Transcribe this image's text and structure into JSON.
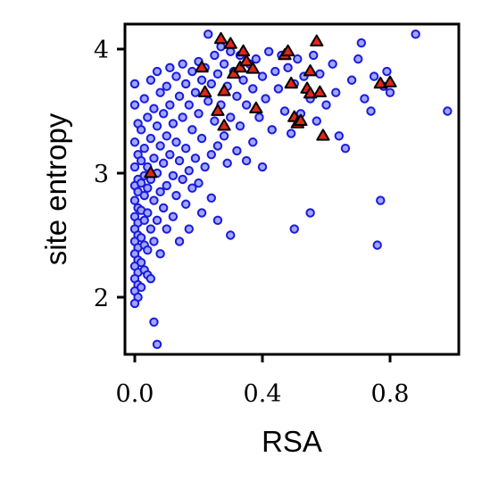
{
  "chart_data": {
    "type": "scatter",
    "xlabel": "RSA",
    "ylabel": "site entropy",
    "xlim": [
      -0.03,
      1.02
    ],
    "ylim": [
      1.52,
      4.22
    ],
    "x_ticks": [
      0.0,
      0.4,
      0.8
    ],
    "x_tick_labels": [
      "0.0",
      "0.4",
      "0.8"
    ],
    "y_ticks": [
      2,
      3,
      4
    ],
    "y_tick_labels": [
      "2",
      "3",
      "4"
    ],
    "grid": false,
    "legend": "none",
    "series": [
      {
        "marker": "circle",
        "color": "#1a1adc",
        "points": [
          [
            0.0,
            3.72
          ],
          [
            0.0,
            3.55
          ],
          [
            0.01,
            3.4
          ],
          [
            0.0,
            3.25
          ],
          [
            0.01,
            3.15
          ],
          [
            0.0,
            3.05
          ],
          [
            0.01,
            2.95
          ],
          [
            0.0,
            2.9
          ],
          [
            0.01,
            2.85
          ],
          [
            0.0,
            2.78
          ],
          [
            0.01,
            2.72
          ],
          [
            0.0,
            2.65
          ],
          [
            0.01,
            2.6
          ],
          [
            0.0,
            2.55
          ],
          [
            0.01,
            2.5
          ],
          [
            0.0,
            2.45
          ],
          [
            0.01,
            2.4
          ],
          [
            0.0,
            2.35
          ],
          [
            0.01,
            2.3
          ],
          [
            0.0,
            2.25
          ],
          [
            0.01,
            2.2
          ],
          [
            0.0,
            2.15
          ],
          [
            0.01,
            2.1
          ],
          [
            0.0,
            2.05
          ],
          [
            0.01,
            2.0
          ],
          [
            0.0,
            1.95
          ],
          [
            0.02,
            3.35
          ],
          [
            0.02,
            3.1
          ],
          [
            0.02,
            2.92
          ],
          [
            0.02,
            2.7
          ],
          [
            0.02,
            2.48
          ],
          [
            0.02,
            2.28
          ],
          [
            0.02,
            2.08
          ],
          [
            0.03,
            3.6
          ],
          [
            0.03,
            3.2
          ],
          [
            0.03,
            2.98
          ],
          [
            0.03,
            2.82
          ],
          [
            0.03,
            2.62
          ],
          [
            0.03,
            2.42
          ],
          [
            0.03,
            2.22
          ],
          [
            0.04,
            3.45
          ],
          [
            0.04,
            3.05
          ],
          [
            0.04,
            2.88
          ],
          [
            0.04,
            2.68
          ],
          [
            0.04,
            2.38
          ],
          [
            0.04,
            2.18
          ],
          [
            0.05,
            3.75
          ],
          [
            0.05,
            3.28
          ],
          [
            0.05,
            2.95
          ],
          [
            0.05,
            2.55
          ],
          [
            0.05,
            2.15
          ],
          [
            0.06,
            3.52
          ],
          [
            0.06,
            3.12
          ],
          [
            0.06,
            2.78
          ],
          [
            0.06,
            2.45
          ],
          [
            0.06,
            1.8
          ],
          [
            0.07,
            3.82
          ],
          [
            0.07,
            3.38
          ],
          [
            0.07,
            3.0
          ],
          [
            0.07,
            2.62
          ],
          [
            0.08,
            3.65
          ],
          [
            0.08,
            3.22
          ],
          [
            0.08,
            2.85
          ],
          [
            0.08,
            2.35
          ],
          [
            0.07,
            1.62
          ],
          [
            0.09,
            3.48
          ],
          [
            0.09,
            3.08
          ],
          [
            0.09,
            2.72
          ],
          [
            0.1,
            3.7
          ],
          [
            0.1,
            3.3
          ],
          [
            0.1,
            2.9
          ],
          [
            0.1,
            2.55
          ],
          [
            0.11,
            3.85
          ],
          [
            0.11,
            3.55
          ],
          [
            0.11,
            3.15
          ],
          [
            0.12,
            3.4
          ],
          [
            0.12,
            2.98
          ],
          [
            0.12,
            2.65
          ],
          [
            0.13,
            3.78
          ],
          [
            0.13,
            3.25
          ],
          [
            0.13,
            2.82
          ],
          [
            0.14,
            3.62
          ],
          [
            0.14,
            3.1
          ],
          [
            0.14,
            2.45
          ],
          [
            0.15,
            3.88
          ],
          [
            0.15,
            3.45
          ],
          [
            0.15,
            2.95
          ],
          [
            0.16,
            3.72
          ],
          [
            0.16,
            3.2
          ],
          [
            0.16,
            2.75
          ],
          [
            0.17,
            3.55
          ],
          [
            0.17,
            3.02
          ],
          [
            0.17,
            2.55
          ],
          [
            0.18,
            3.82
          ],
          [
            0.18,
            3.35
          ],
          [
            0.18,
            2.88
          ],
          [
            0.19,
            3.65
          ],
          [
            0.19,
            3.12
          ],
          [
            0.2,
            3.9
          ],
          [
            0.2,
            3.48
          ],
          [
            0.2,
            2.92
          ],
          [
            0.21,
            3.75
          ],
          [
            0.21,
            3.28
          ],
          [
            0.21,
            2.68
          ],
          [
            0.22,
            3.85
          ],
          [
            0.22,
            3.05
          ],
          [
            0.23,
            4.12
          ],
          [
            0.23,
            3.58
          ],
          [
            0.24,
            3.72
          ],
          [
            0.24,
            3.15
          ],
          [
            0.24,
            2.8
          ],
          [
            0.25,
            3.95
          ],
          [
            0.25,
            3.42
          ],
          [
            0.26,
            3.8
          ],
          [
            0.26,
            3.22
          ],
          [
            0.26,
            2.62
          ],
          [
            0.27,
            4.02
          ],
          [
            0.27,
            3.55
          ],
          [
            0.28,
            3.88
          ],
          [
            0.28,
            3.3
          ],
          [
            0.29,
            3.7
          ],
          [
            0.29,
            3.08
          ],
          [
            0.3,
            3.98
          ],
          [
            0.3,
            3.45
          ],
          [
            0.3,
            2.5
          ],
          [
            0.31,
            3.82
          ],
          [
            0.32,
            3.62
          ],
          [
            0.32,
            3.18
          ],
          [
            0.33,
            3.95
          ],
          [
            0.33,
            3.38
          ],
          [
            0.34,
            3.75
          ],
          [
            0.35,
            3.55
          ],
          [
            0.35,
            3.1
          ],
          [
            0.36,
            3.88
          ],
          [
            0.37,
            3.68
          ],
          [
            0.37,
            3.25
          ],
          [
            0.38,
            3.92
          ],
          [
            0.39,
            3.45
          ],
          [
            0.4,
            3.78
          ],
          [
            0.4,
            3.05
          ],
          [
            0.41,
            3.6
          ],
          [
            0.42,
            3.98
          ],
          [
            0.43,
            3.35
          ],
          [
            0.44,
            3.82
          ],
          [
            0.45,
            3.68
          ],
          [
            0.46,
            3.95
          ],
          [
            0.47,
            3.5
          ],
          [
            0.48,
            3.85
          ],
          [
            0.49,
            3.32
          ],
          [
            0.5,
            3.72
          ],
          [
            0.5,
            2.55
          ],
          [
            0.51,
            3.92
          ],
          [
            0.52,
            3.48
          ],
          [
            0.53,
            3.78
          ],
          [
            0.55,
            3.6
          ],
          [
            0.55,
            2.68
          ],
          [
            0.56,
            3.95
          ],
          [
            0.57,
            3.42
          ],
          [
            0.58,
            3.8
          ],
          [
            0.6,
            3.55
          ],
          [
            0.62,
            3.88
          ],
          [
            0.63,
            3.65
          ],
          [
            0.64,
            3.3
          ],
          [
            0.66,
            3.2
          ],
          [
            0.68,
            3.75
          ],
          [
            0.7,
            3.92
          ],
          [
            0.71,
            4.05
          ],
          [
            0.72,
            3.6
          ],
          [
            0.74,
            3.5
          ],
          [
            0.75,
            3.78
          ],
          [
            0.76,
            2.42
          ],
          [
            0.77,
            2.78
          ],
          [
            0.78,
            3.7
          ],
          [
            0.79,
            3.82
          ],
          [
            0.8,
            3.65
          ],
          [
            0.88,
            4.12
          ],
          [
            0.98,
            3.5
          ]
        ]
      },
      {
        "marker": "triangle",
        "color": "#e0251b",
        "points": [
          [
            0.05,
            3.0
          ],
          [
            0.21,
            3.85
          ],
          [
            0.22,
            3.65
          ],
          [
            0.26,
            3.5
          ],
          [
            0.27,
            4.08
          ],
          [
            0.28,
            3.38
          ],
          [
            0.28,
            3.66
          ],
          [
            0.3,
            4.04
          ],
          [
            0.31,
            3.8
          ],
          [
            0.33,
            3.85
          ],
          [
            0.34,
            3.98
          ],
          [
            0.35,
            3.9
          ],
          [
            0.37,
            3.84
          ],
          [
            0.38,
            3.52
          ],
          [
            0.47,
            3.95
          ],
          [
            0.48,
            3.98
          ],
          [
            0.49,
            3.72
          ],
          [
            0.5,
            3.45
          ],
          [
            0.51,
            3.4
          ],
          [
            0.52,
            3.42
          ],
          [
            0.54,
            3.68
          ],
          [
            0.55,
            3.64
          ],
          [
            0.55,
            3.82
          ],
          [
            0.57,
            4.06
          ],
          [
            0.58,
            3.65
          ],
          [
            0.59,
            3.3
          ],
          [
            0.77,
            3.72
          ],
          [
            0.8,
            3.73
          ]
        ]
      }
    ]
  }
}
